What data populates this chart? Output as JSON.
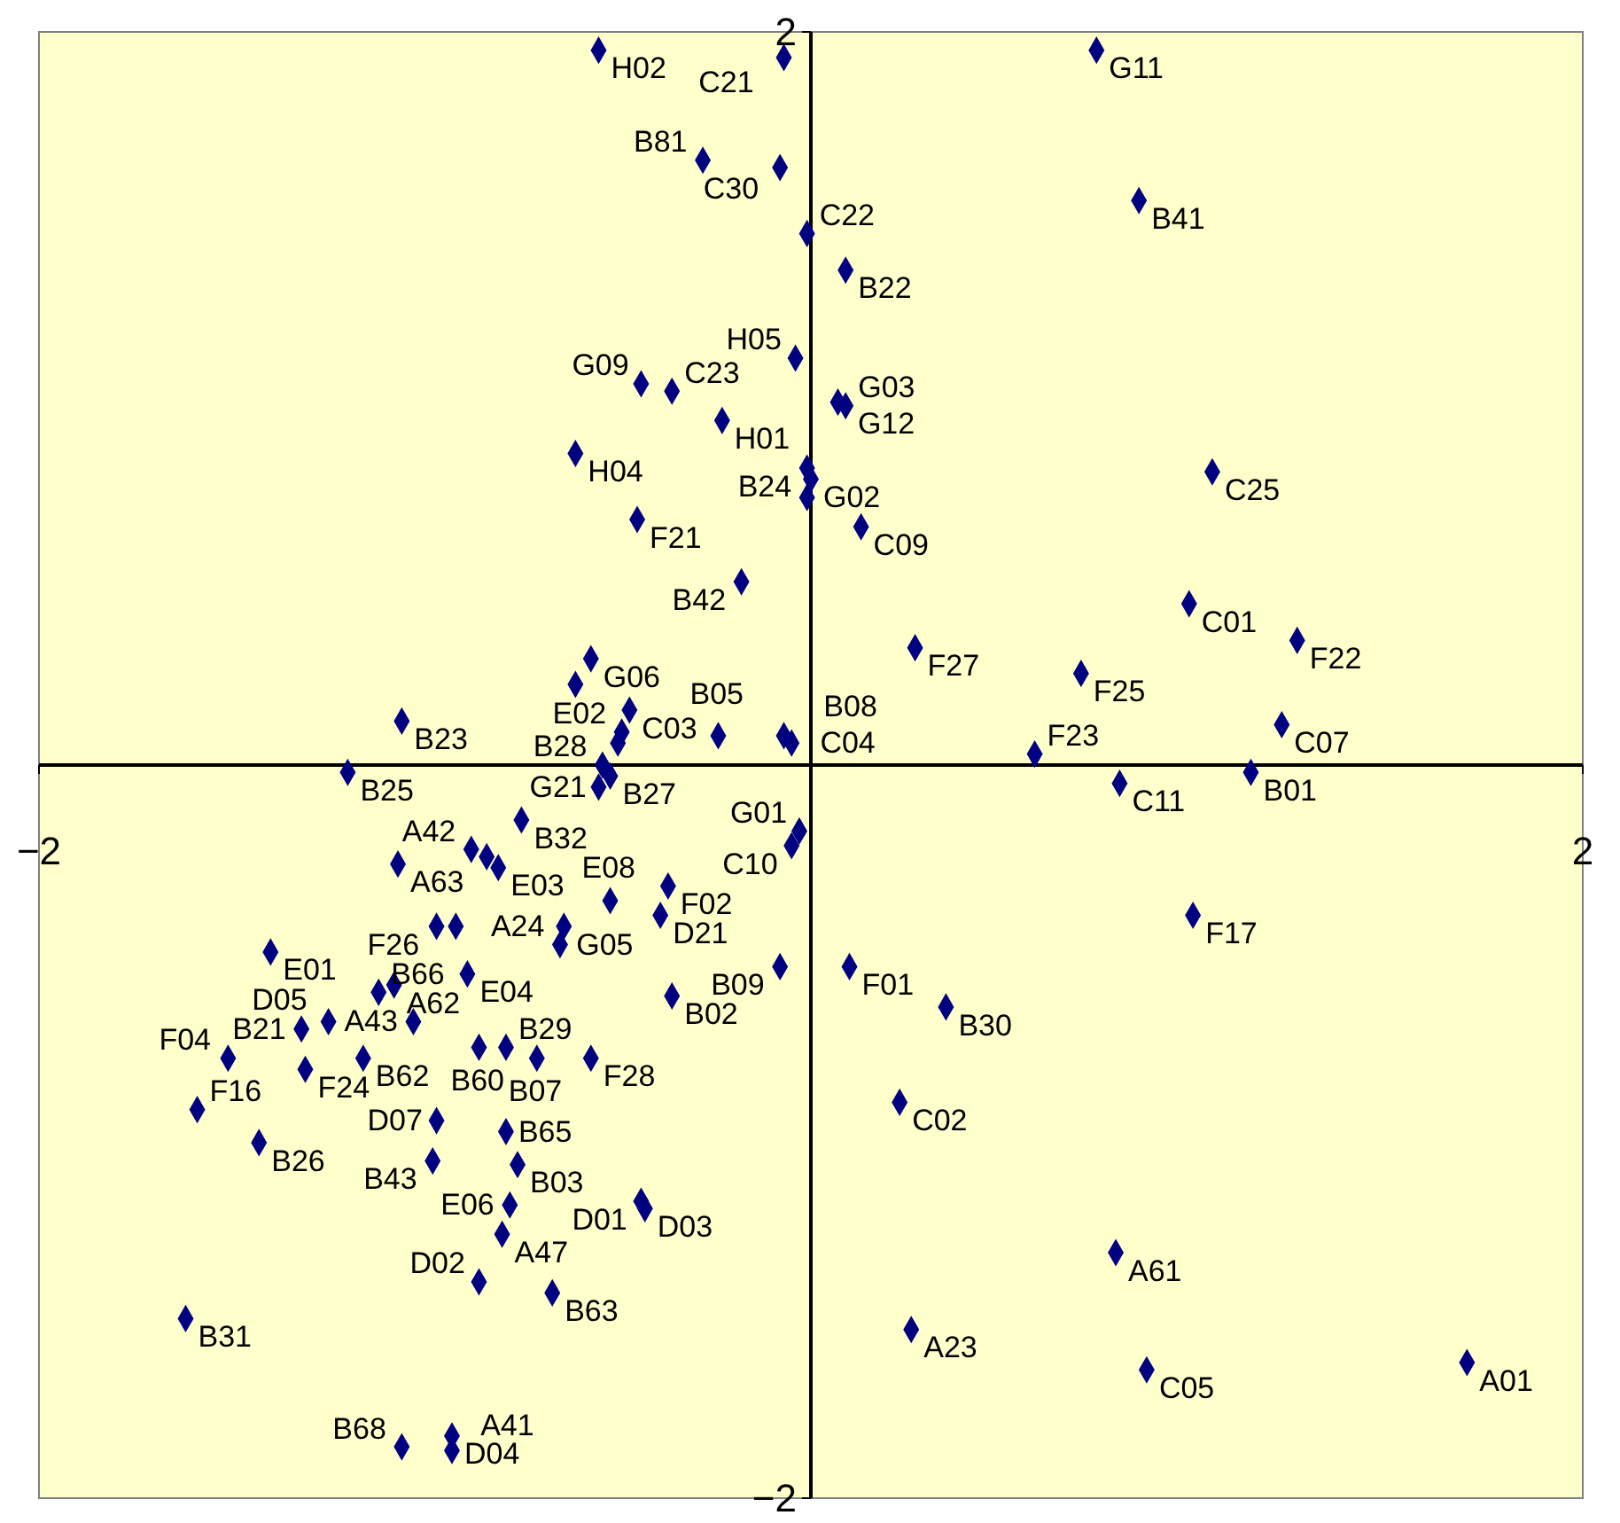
{
  "chart_data": {
    "type": "scatter",
    "marker": "diamond",
    "xlim": [
      -2,
      2
    ],
    "ylim": [
      -2,
      2
    ],
    "xticks": [
      -2,
      2
    ],
    "yticks": [
      -2,
      2
    ],
    "grid": false,
    "series": [
      {
        "color": "#000080",
        "x": [
          -0.55,
          -0.07,
          0.74,
          -0.28,
          -0.08,
          0.85,
          -0.01,
          0.09,
          -0.04,
          0.07,
          0.09,
          -0.44,
          -0.36,
          -0.23,
          -0.61,
          -0.01,
          0.0,
          -0.01,
          1.04,
          0.13,
          -0.45,
          -0.18,
          0.98,
          1.26,
          0.27,
          0.7,
          -0.57,
          -0.61,
          -0.47,
          -0.49,
          -0.5,
          -0.54,
          -0.52,
          -0.55,
          1.22,
          0.58,
          -1.06,
          -1.2,
          -0.24,
          -0.07,
          -0.05,
          0.8,
          1.14,
          -0.75,
          -0.88,
          -0.84,
          -0.81,
          -1.07,
          -0.03,
          -0.05,
          -1.4,
          -0.37,
          -0.52,
          -0.39,
          -0.64,
          -0.65,
          -0.36,
          -0.08,
          0.1,
          0.35,
          0.99,
          0.23,
          0.79,
          0.26,
          0.87,
          1.7,
          -0.97,
          -0.92,
          -0.89,
          -1.12,
          -1.08,
          -1.03,
          -1.25,
          -1.32,
          -1.51,
          -1.31,
          -1.59,
          -1.43,
          -1.16,
          -0.86,
          -0.79,
          -0.71,
          -0.57,
          -0.97,
          -0.79,
          -0.98,
          -0.76,
          -0.44,
          -0.43,
          -0.78,
          -0.8,
          -0.86,
          -0.67,
          -1.62,
          -0.93,
          -1.06,
          -0.93
        ],
        "values": [
          1.95,
          1.93,
          1.95,
          1.65,
          1.63,
          1.54,
          1.45,
          1.35,
          1.11,
          0.99,
          0.98,
          1.04,
          1.02,
          0.94,
          0.85,
          0.81,
          0.78,
          0.73,
          0.8,
          0.65,
          0.67,
          0.5,
          0.44,
          0.34,
          0.32,
          0.25,
          0.29,
          0.22,
          0.15,
          0.09,
          0.06,
          0.0,
          -0.03,
          -0.06,
          0.11,
          0.03,
          0.12,
          -0.02,
          0.08,
          0.08,
          0.06,
          -0.05,
          -0.02,
          -0.15,
          -0.23,
          -0.25,
          -0.28,
          -0.27,
          -0.18,
          -0.22,
          -0.51,
          -0.33,
          -0.37,
          -0.41,
          -0.44,
          -0.49,
          -0.63,
          -0.55,
          -0.55,
          -0.66,
          -0.41,
          -0.92,
          -1.33,
          -1.54,
          -1.65,
          -1.63,
          -0.44,
          -0.44,
          -0.57,
          -0.62,
          -0.6,
          -0.7,
          -0.7,
          -0.72,
          -0.8,
          -0.83,
          -0.94,
          -1.03,
          -0.8,
          -0.77,
          -0.77,
          -0.8,
          -0.8,
          -0.97,
          -1.0,
          -1.08,
          -1.09,
          -1.19,
          -1.21,
          -1.2,
          -1.28,
          -1.41,
          -1.44,
          -1.51,
          -1.83,
          -1.86,
          -1.87
        ]
      }
    ],
    "annotations": [
      {
        "text": "H02",
        "x": -0.55,
        "y": 1.95
      },
      {
        "text": "C21",
        "x": -0.07,
        "y": 1.93
      },
      {
        "text": "G11",
        "x": 0.74,
        "y": 1.95
      },
      {
        "text": "B81",
        "x": -0.28,
        "y": 1.65
      },
      {
        "text": "C30",
        "x": -0.08,
        "y": 1.63
      },
      {
        "text": "B41",
        "x": 0.85,
        "y": 1.54
      },
      {
        "text": "C22",
        "x": -0.01,
        "y": 1.45
      },
      {
        "text": "B22",
        "x": 0.09,
        "y": 1.35
      },
      {
        "text": "H05",
        "x": -0.04,
        "y": 1.11
      },
      {
        "text": "G12",
        "x": 0.07,
        "y": 0.99
      },
      {
        "text": "G03",
        "x": 0.09,
        "y": 0.98
      },
      {
        "text": "G09",
        "x": -0.44,
        "y": 1.04
      },
      {
        "text": "C23",
        "x": -0.36,
        "y": 1.02
      },
      {
        "text": "H01",
        "x": -0.23,
        "y": 0.94
      },
      {
        "text": "H04",
        "x": -0.61,
        "y": 0.85
      },
      {
        "text": "B24",
        "x": -0.01,
        "y": 0.81
      },
      {
        "text": "G02",
        "x": 0.0,
        "y": 0.78
      },
      {
        "text": "C25",
        "x": 1.04,
        "y": 0.8
      },
      {
        "text": "C09",
        "x": 0.13,
        "y": 0.65
      },
      {
        "text": "F21",
        "x": -0.45,
        "y": 0.67
      },
      {
        "text": "B42",
        "x": -0.18,
        "y": 0.5
      },
      {
        "text": "C01",
        "x": 0.98,
        "y": 0.44
      },
      {
        "text": "F22",
        "x": 1.26,
        "y": 0.34
      },
      {
        "text": "F27",
        "x": 0.27,
        "y": 0.32
      },
      {
        "text": "F25",
        "x": 0.7,
        "y": 0.25
      },
      {
        "text": "G06",
        "x": -0.57,
        "y": 0.29
      },
      {
        "text": "C03",
        "x": -0.47,
        "y": 0.15
      },
      {
        "text": "E02",
        "x": -0.49,
        "y": 0.09
      },
      {
        "text": "B28",
        "x": -0.54,
        "y": 0.0
      },
      {
        "text": "B27",
        "x": -0.52,
        "y": -0.03
      },
      {
        "text": "G21",
        "x": -0.55,
        "y": -0.06
      },
      {
        "text": "C07",
        "x": 1.22,
        "y": 0.11
      },
      {
        "text": "F23",
        "x": 0.58,
        "y": 0.03
      },
      {
        "text": "B23",
        "x": -1.06,
        "y": 0.12
      },
      {
        "text": "B25",
        "x": -1.2,
        "y": -0.02
      },
      {
        "text": "B05",
        "x": -0.24,
        "y": 0.08
      },
      {
        "text": "B08",
        "x": -0.07,
        "y": 0.08
      },
      {
        "text": "C04",
        "x": -0.05,
        "y": 0.06
      },
      {
        "text": "C11",
        "x": 0.8,
        "y": -0.05
      },
      {
        "text": "B01",
        "x": 1.14,
        "y": -0.02
      },
      {
        "text": "B32",
        "x": -0.75,
        "y": -0.15
      },
      {
        "text": "A42",
        "x": -0.88,
        "y": -0.23
      },
      {
        "text": "E03",
        "x": -0.81,
        "y": -0.28
      },
      {
        "text": "A63",
        "x": -1.07,
        "y": -0.27
      },
      {
        "text": "G01",
        "x": -0.03,
        "y": -0.18
      },
      {
        "text": "C10",
        "x": -0.05,
        "y": -0.22
      },
      {
        "text": "E01",
        "x": -1.4,
        "y": -0.51
      },
      {
        "text": "F02",
        "x": -0.37,
        "y": -0.33
      },
      {
        "text": "E08",
        "x": -0.52,
        "y": -0.37
      },
      {
        "text": "D21",
        "x": -0.39,
        "y": -0.41
      },
      {
        "text": "G05",
        "x": -0.64,
        "y": -0.44
      },
      {
        "text": "A24",
        "x": -0.65,
        "y": -0.49
      },
      {
        "text": "B02",
        "x": -0.36,
        "y": -0.63
      },
      {
        "text": "B09",
        "x": -0.08,
        "y": -0.55
      },
      {
        "text": "F01",
        "x": 0.1,
        "y": -0.55
      },
      {
        "text": "B30",
        "x": 0.35,
        "y": -0.66
      },
      {
        "text": "F17",
        "x": 0.99,
        "y": -0.41
      },
      {
        "text": "C02",
        "x": 0.23,
        "y": -0.92
      },
      {
        "text": "A61",
        "x": 0.79,
        "y": -1.33
      },
      {
        "text": "A23",
        "x": 0.26,
        "y": -1.54
      },
      {
        "text": "C05",
        "x": 0.87,
        "y": -1.65
      },
      {
        "text": "A01",
        "x": 1.7,
        "y": -1.63
      },
      {
        "text": "F26",
        "x": -0.97,
        "y": -0.44
      },
      {
        "text": "E04",
        "x": -0.89,
        "y": -0.57
      },
      {
        "text": "B66",
        "x": -1.12,
        "y": -0.62
      },
      {
        "text": "A62",
        "x": -1.08,
        "y": -0.6
      },
      {
        "text": "A43",
        "x": -1.03,
        "y": -0.7
      },
      {
        "text": "D05",
        "x": -1.25,
        "y": -0.7
      },
      {
        "text": "B21",
        "x": -1.32,
        "y": -0.72
      },
      {
        "text": "F04",
        "x": -1.51,
        "y": -0.8
      },
      {
        "text": "F24",
        "x": -1.31,
        "y": -0.83
      },
      {
        "text": "F16",
        "x": -1.59,
        "y": -0.94
      },
      {
        "text": "B26",
        "x": -1.43,
        "y": -1.03
      },
      {
        "text": "B62",
        "x": -1.16,
        "y": -0.8
      },
      {
        "text": "B60",
        "x": -0.86,
        "y": -0.77
      },
      {
        "text": "B29",
        "x": -0.79,
        "y": -0.77
      },
      {
        "text": "B07",
        "x": -0.71,
        "y": -0.8
      },
      {
        "text": "F28",
        "x": -0.57,
        "y": -0.8
      },
      {
        "text": "D07",
        "x": -0.97,
        "y": -0.97
      },
      {
        "text": "B65",
        "x": -0.79,
        "y": -1.0
      },
      {
        "text": "B43",
        "x": -0.98,
        "y": -1.08
      },
      {
        "text": "B03",
        "x": -0.76,
        "y": -1.09
      },
      {
        "text": "D01",
        "x": -0.44,
        "y": -1.19
      },
      {
        "text": "D03",
        "x": -0.43,
        "y": -1.21
      },
      {
        "text": "E06",
        "x": -0.78,
        "y": -1.2
      },
      {
        "text": "A47",
        "x": -0.8,
        "y": -1.28
      },
      {
        "text": "D02",
        "x": -0.86,
        "y": -1.41
      },
      {
        "text": "B63",
        "x": -0.67,
        "y": -1.44
      },
      {
        "text": "B31",
        "x": -1.62,
        "y": -1.51
      },
      {
        "text": "D04",
        "x": -0.93,
        "y": -1.83
      },
      {
        "text": "B68",
        "x": -1.06,
        "y": -1.86
      },
      {
        "text": "A41",
        "x": -0.93,
        "y": -1.87
      }
    ]
  }
}
